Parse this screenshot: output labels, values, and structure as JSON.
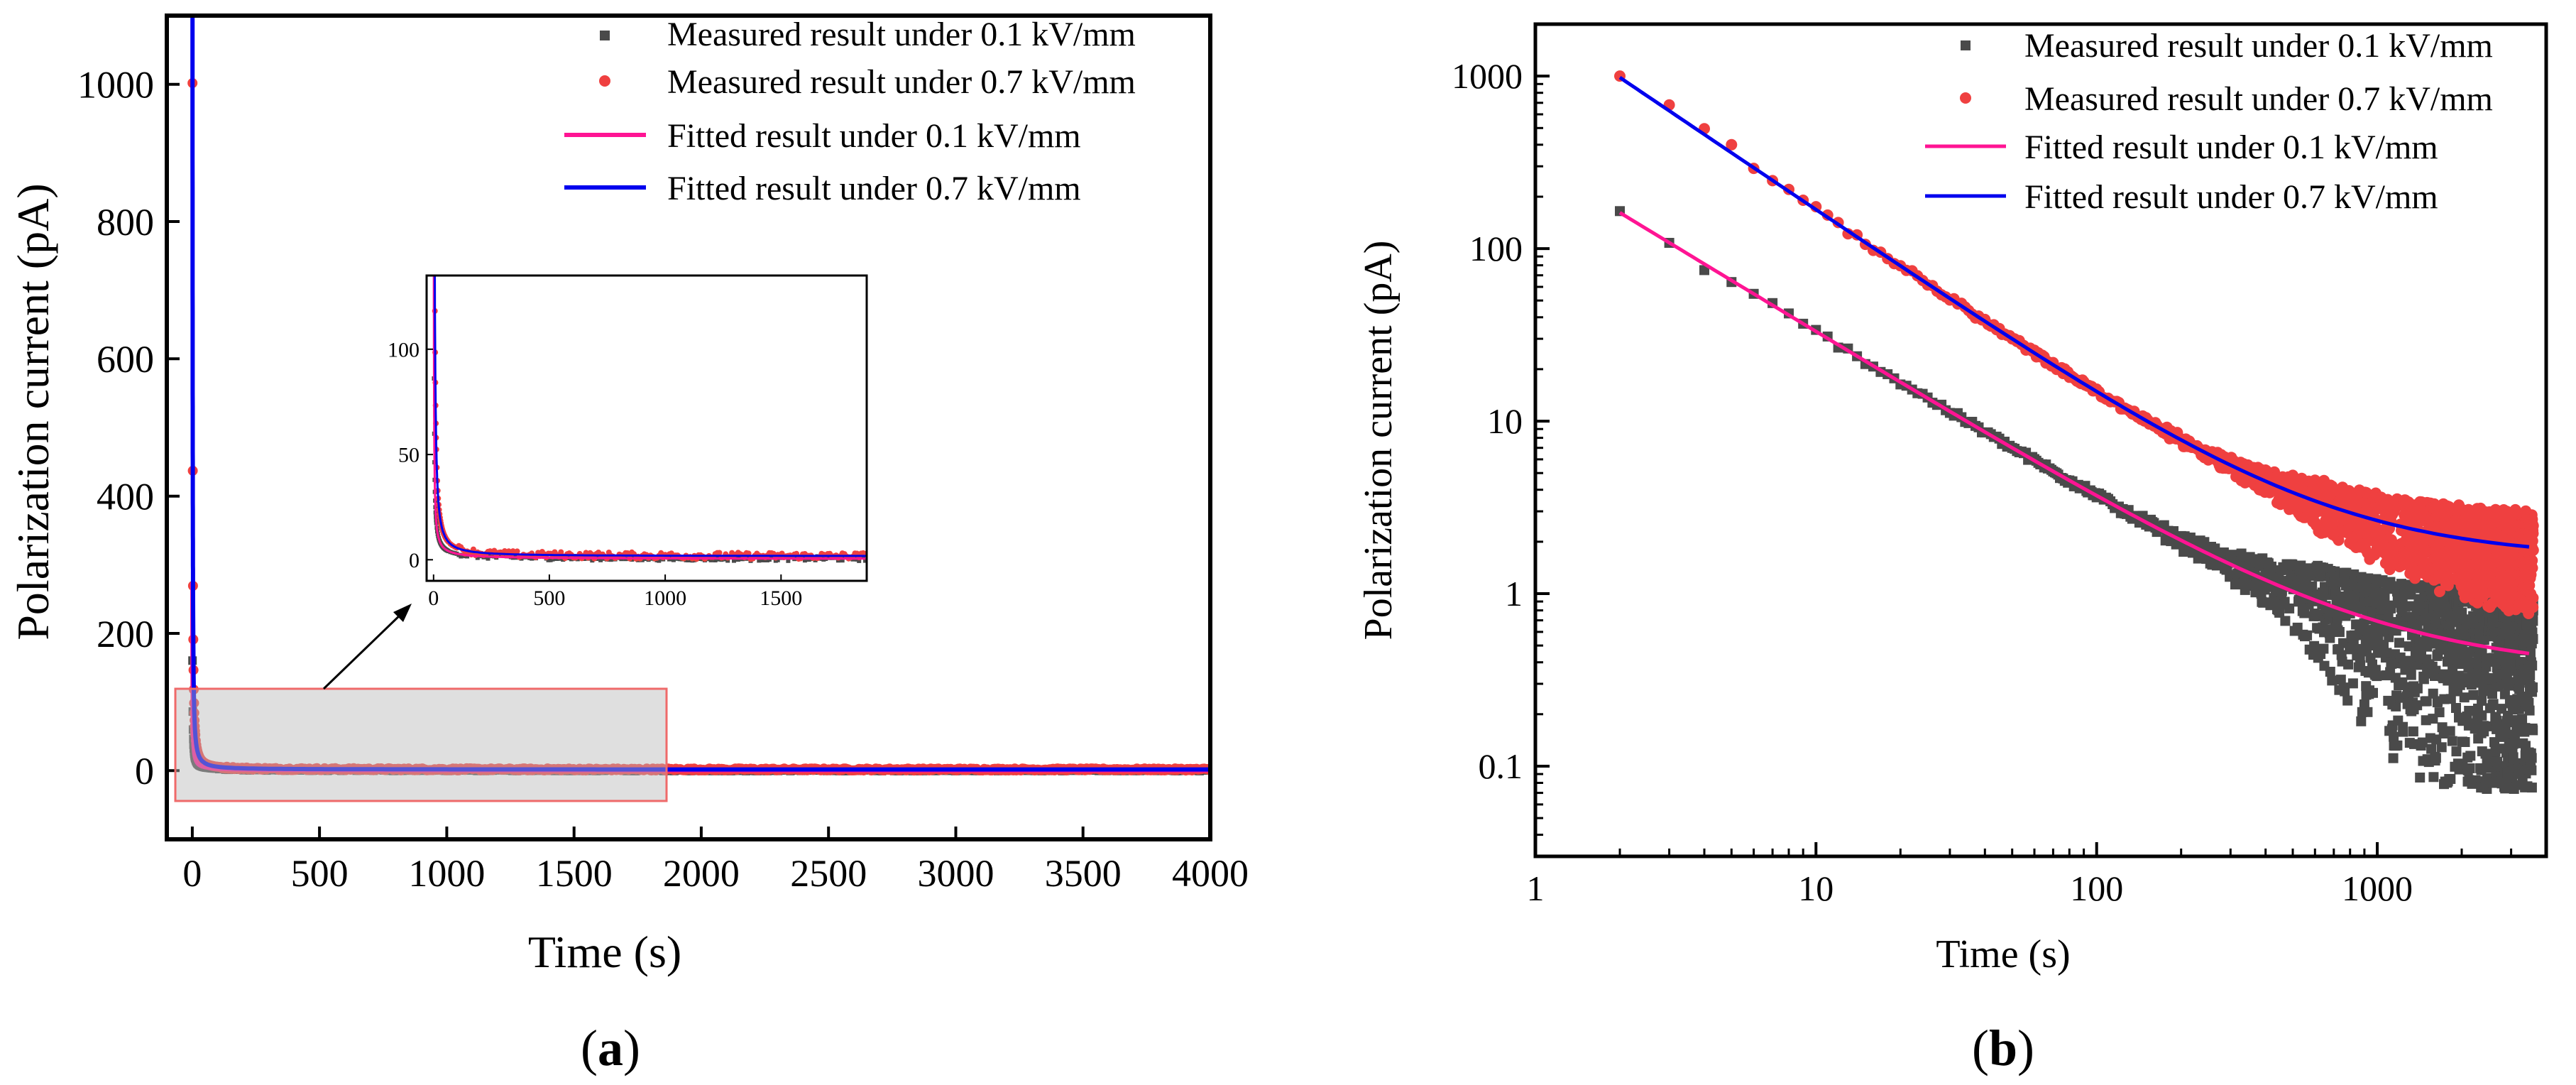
{
  "chart_data": [
    {
      "panel": "a",
      "panel_label_open": "(",
      "panel_label_letter": "a",
      "panel_label_close": ")",
      "type": "scatter",
      "xlabel": "Time (s)",
      "ylabel": "Polarization current (pA)",
      "xlim": [
        -100,
        4000
      ],
      "ylim": [
        -100,
        1100
      ],
      "xticks": [
        "0",
        "500",
        "1000",
        "1500",
        "2000",
        "2500",
        "3000",
        "3500",
        "4000"
      ],
      "yticks": [
        "0",
        "200",
        "400",
        "600",
        "800",
        "1000"
      ],
      "legend": [
        "Measured result under 0.1 kV/mm",
        "Measured result under 0.7 kV/mm",
        "Fitted result under 0.1 kV/mm",
        "Fitted result under 0.7 kV/mm"
      ],
      "zoom_box": {
        "xrange": [
          -50,
          1870
        ],
        "yrange": [
          -20,
          140
        ]
      },
      "inset": {
        "xlim": [
          -30,
          1870
        ],
        "ylim": [
          -10,
          135
        ],
        "xticks": [
          "0",
          "500",
          "1000",
          "1500"
        ],
        "yticks": [
          "0",
          "50",
          "100"
        ]
      },
      "series": [
        {
          "name": "Measured result under 0.1 kV/mm",
          "kind": "markers",
          "marker": "square",
          "color": "#4a4a4a",
          "model": {
            "A": 160,
            "n": 0.9,
            "c": 0.35
          }
        },
        {
          "name": "Measured result under 0.7 kV/mm",
          "kind": "markers",
          "marker": "circle",
          "color": "#ef4040",
          "model": {
            "A": 1000,
            "n": 1.2,
            "c": 1.7
          }
        },
        {
          "name": "Fitted result under 0.1 kV/mm",
          "kind": "line",
          "color": "#ff1493",
          "model": {
            "A": 160,
            "n": 0.9,
            "c": 0.35
          }
        },
        {
          "name": "Fitted result under 0.7 kV/mm",
          "kind": "line",
          "color": "#0000ee",
          "model": {
            "A": 1000,
            "n": 1.2,
            "c": 1.7
          }
        }
      ]
    },
    {
      "panel": "b",
      "panel_label_open": "(",
      "panel_label_letter": "b",
      "panel_label_close": ")",
      "type": "scatter",
      "xscale": "log",
      "yscale": "log",
      "xlabel": "Time (s)",
      "ylabel": "Polarization current (pA)",
      "xlim": [
        1,
        4000
      ],
      "ylim": [
        0.03,
        2000
      ],
      "xticks": [
        "1",
        "10",
        "100",
        "1000"
      ],
      "yticks": [
        "0.1",
        "1",
        "10",
        "100",
        "1000"
      ],
      "legend": [
        "Measured result under 0.1 kV/mm",
        "Measured result under 0.7 kV/mm",
        "Fitted result under 0.1 kV/mm",
        "Fitted result under 0.7 kV/mm"
      ],
      "series": [
        {
          "name": "Measured result under 0.1 kV/mm",
          "kind": "markers",
          "marker": "square",
          "color": "#4a4a4a",
          "model": {
            "A": 320,
            "n": 0.99,
            "c": 0.35
          },
          "points": [
            [
              2,
              165
            ],
            [
              3,
              108
            ],
            [
              4,
              75
            ],
            [
              5,
              64
            ]
          ]
        },
        {
          "name": "Measured result under 0.7 kV/mm",
          "kind": "markers",
          "marker": "circle",
          "color": "#ef4040",
          "model": {
            "A": 2100,
            "n": 1.1,
            "c": 1.6
          },
          "points": [
            [
              2,
              1000
            ],
            [
              3,
              680
            ],
            [
              4,
              495
            ],
            [
              5,
              400
            ]
          ]
        },
        {
          "name": "Fitted result under 0.1 kV/mm",
          "kind": "line",
          "color": "#ff1493",
          "model": {
            "A": 320,
            "n": 0.99,
            "c": 0.35
          }
        },
        {
          "name": "Fitted result under 0.7 kV/mm",
          "kind": "line",
          "color": "#0000ee",
          "model": {
            "A": 2100,
            "n": 1.1,
            "c": 1.6
          }
        }
      ]
    }
  ]
}
